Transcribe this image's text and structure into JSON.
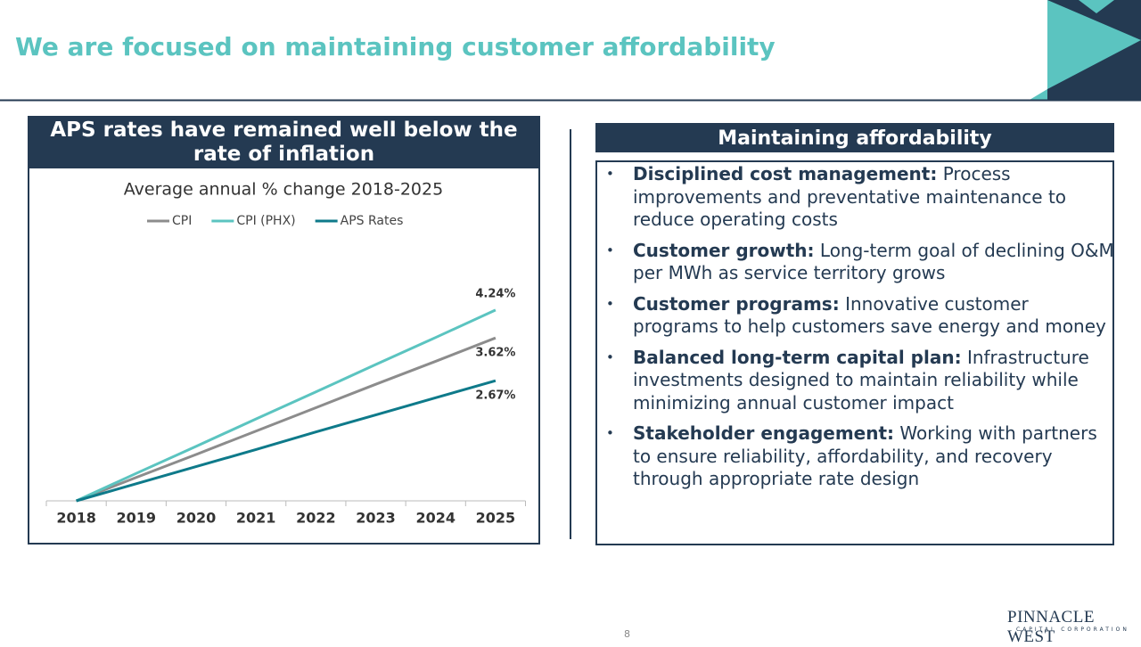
{
  "title": "We are focused on maintaining customer affordability",
  "left_panel": {
    "heading": "APS rates have remained well below the rate of inflation"
  },
  "chart_data": {
    "type": "line",
    "title": "Average annual % change 2018-2025",
    "categories": [
      "2018",
      "2019",
      "2020",
      "2021",
      "2022",
      "2023",
      "2024",
      "2025"
    ],
    "series": [
      {
        "name": "CPI",
        "color": "#8c8c8c",
        "values": [
          0,
          0.52,
          1.03,
          1.55,
          2.07,
          2.59,
          3.1,
          3.62
        ],
        "value_labels": [
          null,
          null,
          null,
          null,
          null,
          null,
          null,
          "3.62%"
        ]
      },
      {
        "name": "CPI (PHX)",
        "color": "#5bc4c0",
        "values": [
          0,
          0.61,
          1.21,
          1.82,
          2.42,
          3.03,
          3.63,
          4.24
        ],
        "value_labels": [
          null,
          null,
          null,
          null,
          null,
          null,
          null,
          "4.24%"
        ]
      },
      {
        "name": "APS Rates",
        "color": "#0e7a8a",
        "values": [
          0,
          0.38,
          0.76,
          1.14,
          1.53,
          1.91,
          2.29,
          2.67
        ],
        "value_labels": [
          null,
          null,
          null,
          null,
          null,
          null,
          null,
          "2.67%"
        ]
      }
    ],
    "legend": "top"
  },
  "right_panel": {
    "heading": "Maintaining affordability",
    "bullets": [
      {
        "lead": "Disciplined cost management:",
        "text": "Process improvements and preventative maintenance to reduce operating costs"
      },
      {
        "lead": "Customer growth:",
        "text": "Long-term goal of declining O&M per MWh as service territory grows"
      },
      {
        "lead": "Customer programs:",
        "text": "Innovative customer programs to help customers save energy and money"
      },
      {
        "lead": "Balanced long-term capital plan:",
        "text": "Infrastructure investments designed to maintain reliability while minimizing annual customer impact"
      },
      {
        "lead": "Stakeholder engagement:",
        "text": "Working with partners to ensure reliability, affordability, and recovery through appropriate rate design"
      }
    ]
  },
  "footer": {
    "page_number": "8",
    "logo": "PINNACLE WEST",
    "logo_sub": "CAPITAL CORPORATION"
  }
}
